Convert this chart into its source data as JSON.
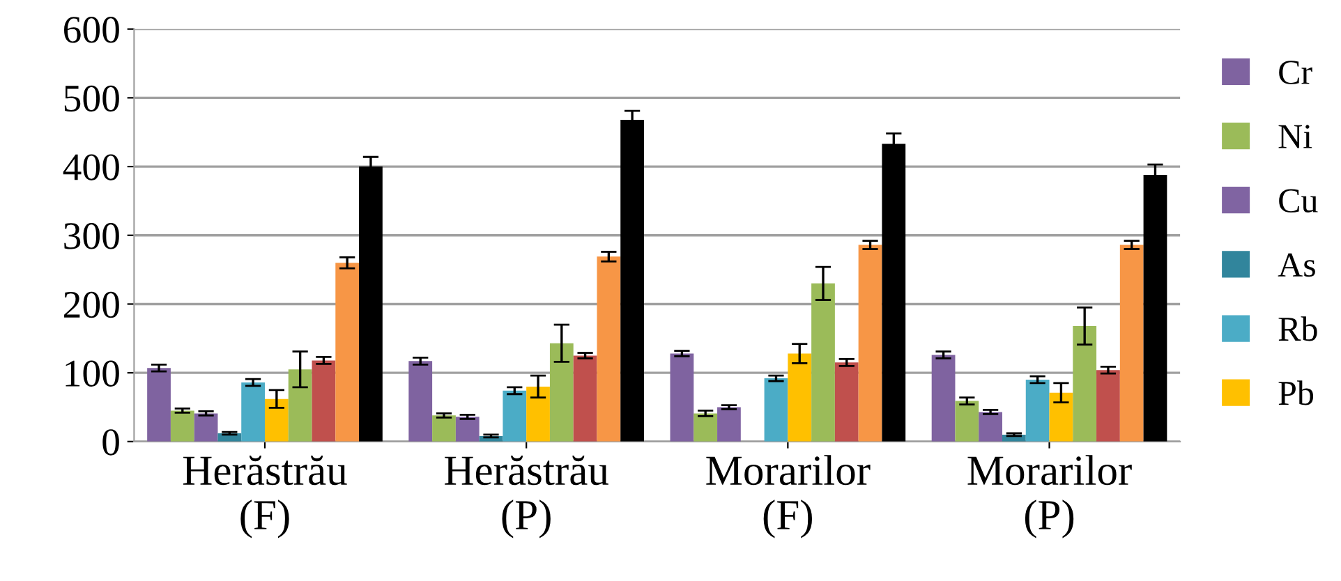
{
  "chart_data": {
    "type": "bar",
    "categories": [
      "Herăstrău\n(F)",
      "Herăstrău\n(P)",
      "Morarilor\n(F)",
      "Morarilor\n(P)"
    ],
    "series": [
      {
        "name": "Cr",
        "color": "#7f63a0",
        "values": [
          107,
          117,
          128,
          126
        ],
        "errors": [
          5,
          5,
          4,
          5
        ]
      },
      {
        "name": "Ni",
        "color": "#9bbb59",
        "values": [
          45,
          38,
          41,
          59
        ],
        "errors": [
          3,
          3,
          4,
          5
        ]
      },
      {
        "name": "Cu",
        "color": "#8064a2",
        "values": [
          41,
          36,
          50,
          43
        ],
        "errors": [
          3,
          3,
          3,
          3
        ]
      },
      {
        "name": "As",
        "color": "#31859c",
        "values": [
          12,
          8,
          null,
          10
        ],
        "errors": [
          2,
          2,
          null,
          2
        ]
      },
      {
        "name": "Rb",
        "color": "#4bacc6",
        "values": [
          86,
          74,
          92,
          90
        ],
        "errors": [
          5,
          5,
          4,
          5
        ]
      },
      {
        "name": "Pb",
        "color": "#ffc000",
        "values": [
          62,
          80,
          128,
          71
        ],
        "errors": [
          13,
          16,
          14,
          14
        ]
      },
      {
        "color": "#9bbb59",
        "values": [
          105,
          143,
          230,
          168
        ],
        "errors": [
          26,
          27,
          24,
          27
        ]
      },
      {
        "color": "#c0504d",
        "values": [
          118,
          125,
          115,
          104
        ],
        "errors": [
          5,
          4,
          5,
          5
        ]
      },
      {
        "color": "#f79646",
        "values": [
          260,
          269,
          286,
          286
        ],
        "errors": [
          8,
          7,
          6,
          6
        ]
      },
      {
        "color": "#000000",
        "values": [
          400,
          468,
          433,
          388
        ],
        "errors": [
          14,
          13,
          15,
          15
        ]
      }
    ],
    "ylim": [
      0,
      600
    ],
    "yticks": [
      0,
      100,
      200,
      300,
      400,
      500,
      600
    ],
    "grid": "y",
    "legend": "right"
  }
}
